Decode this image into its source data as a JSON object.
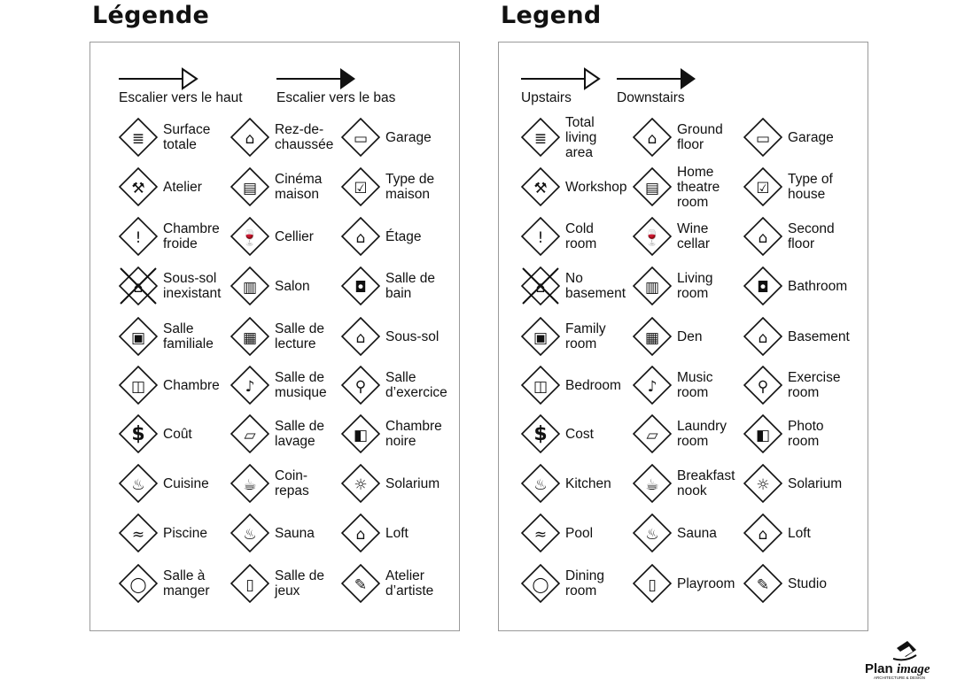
{
  "logo_text": "Planimage ARCHITECTURE & DESIGN",
  "panels": [
    {
      "title": "Légende",
      "stairs_up": "Escalier vers le haut",
      "stairs_down": "Escalier vers le bas",
      "items": [
        {
          "label": "Surface\ntotale",
          "icon": "total-area-icon"
        },
        {
          "label": "Rez-de-\nchaussée",
          "icon": "ground-floor-icon"
        },
        {
          "label": "Garage",
          "icon": "garage-icon"
        },
        {
          "label": "Atelier",
          "icon": "hammer-icon"
        },
        {
          "label": "Cinéma\nmaison",
          "icon": "home-theatre-icon"
        },
        {
          "label": "Type de\nmaison",
          "icon": "house-check-icon"
        },
        {
          "label": "Chambre\nfroide",
          "icon": "thermometer-icon"
        },
        {
          "label": "Cellier",
          "icon": "wine-icon"
        },
        {
          "label": "Étage",
          "icon": "second-floor-icon"
        },
        {
          "label": "Sous-sol\ninexistant",
          "icon": "no-basement-icon"
        },
        {
          "label": "Salon",
          "icon": "sofa-icon"
        },
        {
          "label": "Salle de\nbain",
          "icon": "toilet-icon"
        },
        {
          "label": "Salle\nfamiliale",
          "icon": "tv-icon"
        },
        {
          "label": "Salle de\nlecture",
          "icon": "book-icon"
        },
        {
          "label": "Sous-sol",
          "icon": "basement-icon"
        },
        {
          "label": "Chambre",
          "icon": "bed-icon"
        },
        {
          "label": "Salle de\nmusique",
          "icon": "music-note-icon"
        },
        {
          "label": "Salle\nd’exercice",
          "icon": "weights-icon"
        },
        {
          "label": "Coût",
          "icon": "dollar-icon"
        },
        {
          "label": "Salle de\nlavage",
          "icon": "laundry-icon"
        },
        {
          "label": "Chambre\nnoire",
          "icon": "camera-icon"
        },
        {
          "label": "Cuisine",
          "icon": "pot-icon"
        },
        {
          "label": "Coin-\nrepas",
          "icon": "coffee-cup-icon"
        },
        {
          "label": "Solarium",
          "icon": "sun-icon"
        },
        {
          "label": "Piscine",
          "icon": "pool-icon"
        },
        {
          "label": "Sauna",
          "icon": "sauna-icon"
        },
        {
          "label": "Loft",
          "icon": "loft-icon"
        },
        {
          "label": "Salle à\nmanger",
          "icon": "plate-icon"
        },
        {
          "label": "Salle de\njeux",
          "icon": "playroom-icon"
        },
        {
          "label": "Atelier\nd’artiste",
          "icon": "palette-icon"
        }
      ]
    },
    {
      "title": "Legend",
      "stairs_up": "Upstairs",
      "stairs_down": "Downstairs",
      "items": [
        {
          "label": "Total\nliving\narea",
          "icon": "total-area-icon"
        },
        {
          "label": "Ground\nfloor",
          "icon": "ground-floor-icon"
        },
        {
          "label": "Garage",
          "icon": "garage-icon"
        },
        {
          "label": "Workshop",
          "icon": "hammer-icon"
        },
        {
          "label": "Home\ntheatre\nroom",
          "icon": "home-theatre-icon"
        },
        {
          "label": "Type of\nhouse",
          "icon": "house-check-icon"
        },
        {
          "label": "Cold\nroom",
          "icon": "thermometer-icon"
        },
        {
          "label": "Wine\ncellar",
          "icon": "wine-icon"
        },
        {
          "label": "Second\nfloor",
          "icon": "second-floor-icon"
        },
        {
          "label": "No\nbasement",
          "icon": "no-basement-icon"
        },
        {
          "label": "Living\nroom",
          "icon": "sofa-icon"
        },
        {
          "label": "Bathroom",
          "icon": "toilet-icon"
        },
        {
          "label": "Family\nroom",
          "icon": "tv-icon"
        },
        {
          "label": "Den",
          "icon": "book-icon"
        },
        {
          "label": "Basement",
          "icon": "basement-icon"
        },
        {
          "label": "Bedroom",
          "icon": "bed-icon"
        },
        {
          "label": "Music\nroom",
          "icon": "music-note-icon"
        },
        {
          "label": "Exercise\nroom",
          "icon": "weights-icon"
        },
        {
          "label": "Cost",
          "icon": "dollar-icon"
        },
        {
          "label": "Laundry\nroom",
          "icon": "laundry-icon"
        },
        {
          "label": "Photo\nroom",
          "icon": "camera-icon"
        },
        {
          "label": "Kitchen",
          "icon": "pot-icon"
        },
        {
          "label": "Breakfast\nnook",
          "icon": "coffee-cup-icon"
        },
        {
          "label": "Solarium",
          "icon": "sun-icon"
        },
        {
          "label": "Pool",
          "icon": "pool-icon"
        },
        {
          "label": "Sauna",
          "icon": "sauna-icon"
        },
        {
          "label": "Loft",
          "icon": "loft-icon"
        },
        {
          "label": "Dining\nroom",
          "icon": "plate-icon"
        },
        {
          "label": "Playroom",
          "icon": "playroom-icon"
        },
        {
          "label": "Studio",
          "icon": "palette-icon"
        }
      ]
    }
  ]
}
